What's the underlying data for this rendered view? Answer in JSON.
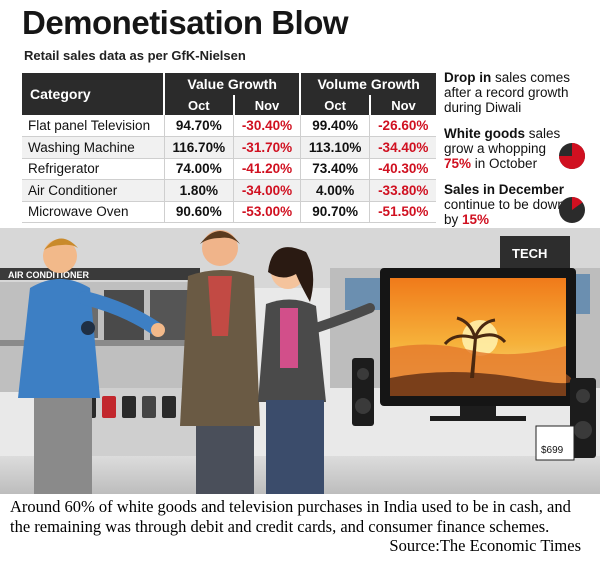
{
  "title": "Demonetisation Blow",
  "subtitle": "Retail sales data as per GfK-Nielsen",
  "chart_data": {
    "type": "table",
    "columns": {
      "category": "Category",
      "groups": [
        "Value Growth",
        "Volume Growth"
      ],
      "sub": [
        "Oct",
        "Nov",
        "Oct",
        "Nov"
      ]
    },
    "rows": [
      {
        "category": "Flat panel Television",
        "value_oct": "94.70%",
        "value_nov": "-30.40%",
        "volume_oct": "99.40%",
        "volume_nov": "-26.60%"
      },
      {
        "category": "Washing Machine",
        "value_oct": "116.70%",
        "value_nov": "-31.70%",
        "volume_oct": "113.10%",
        "volume_nov": "-34.40%"
      },
      {
        "category": "Refrigerator",
        "value_oct": "74.00%",
        "value_nov": "-41.20%",
        "volume_oct": "73.40%",
        "volume_nov": "-40.30%"
      },
      {
        "category": "Air Conditioner",
        "value_oct": "1.80%",
        "value_nov": "-34.00%",
        "volume_oct": "4.00%",
        "volume_nov": "-33.80%"
      },
      {
        "category": "Microwave Oven",
        "value_oct": "90.60%",
        "value_nov": "-53.00%",
        "volume_oct": "90.70%",
        "volume_nov": "-51.50%"
      }
    ]
  },
  "notes": {
    "n1_bold": "Drop in",
    "n1_text": " sales comes after a record growth during Diwali",
    "n2_bold": "White goods",
    "n2_text": " sales grow a whopping ",
    "n2_value": "75%",
    "n2_tail": " in October",
    "n2_pie_fraction": 0.75,
    "n3_bold": "Sales in December",
    "n3_text": " continue to be down by ",
    "n3_value": "15%",
    "n3_pie_fraction": 0.15
  },
  "illustration": {
    "store_sign": "AIR CONDITIONER",
    "tv_sign": "TECH",
    "price_tag": "$699"
  },
  "caption": {
    "text": "Around 60% of white goods and television purchases in India used to be in cash, and the remaining was through debit and credit cards, and consumer finance schemes.",
    "source": "Source:The Economic Times"
  },
  "colors": {
    "accent_red": "#d01020",
    "header_dark": "#2b2b2b"
  }
}
